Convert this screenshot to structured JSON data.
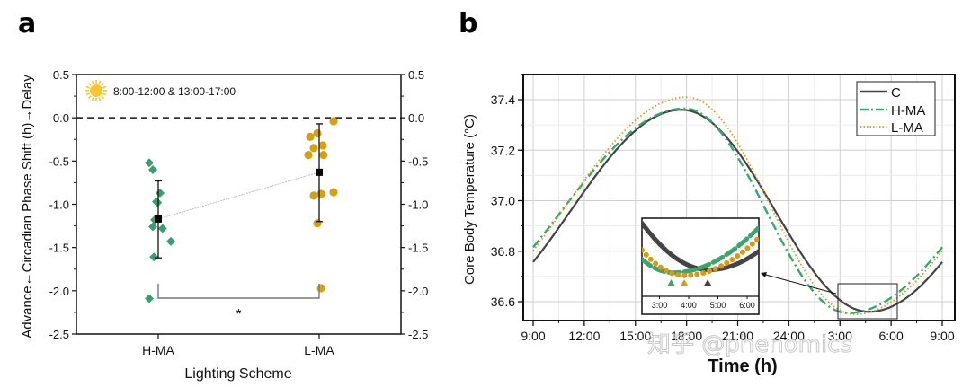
{
  "chart_data": [
    {
      "type": "scatter",
      "panel_label": "a",
      "title": "",
      "annotation": "8:00-12:00 & 13:00-17:00",
      "annotation_icon": "sun-icon",
      "xlabel": "Lighting Scheme",
      "ylabel": "Advance←Circadian Phase Shift (h)→Delay",
      "categories": [
        "H-MA",
        "L-MA"
      ],
      "ylim": [
        -2.5,
        0.5
      ],
      "yticks": [
        "0.5",
        "0.0",
        "-0.5",
        "-1.0",
        "-1.5",
        "-2.0",
        "-2.5"
      ],
      "yticks_values": [
        0.5,
        0.0,
        -0.5,
        -1.0,
        -1.5,
        -2.0,
        -2.5
      ],
      "reference_line": 0.0,
      "significance_label": "*",
      "series": [
        {
          "name": "H-MA",
          "marker": "diamond",
          "color": "#3a9e6e",
          "offsets": [
            -0.25,
            -0.15,
            0.05,
            -0.05,
            -0.02,
            -0.1,
            -0.15,
            0.12,
            0.35,
            -0.12,
            -0.25
          ],
          "values": [
            -0.52,
            -0.6,
            -0.87,
            -0.97,
            -0.98,
            -1.18,
            -1.26,
            -1.28,
            -1.43,
            -1.61,
            -2.09
          ],
          "mean": -1.17,
          "error_low": -1.62,
          "error_high": -0.73
        },
        {
          "name": "L-MA",
          "marker": "circle",
          "color": "#d4a017",
          "offsets": [
            -0.25,
            -0.05,
            0.4,
            -0.15,
            0.1,
            -0.3,
            0.12,
            -0.15,
            0.4,
            0.05,
            -0.05,
            0.05
          ],
          "values": [
            -0.22,
            -0.18,
            -0.04,
            -0.35,
            -0.32,
            -0.43,
            -0.43,
            -0.9,
            -0.86,
            -0.88,
            -1.22,
            -1.97
          ],
          "mean": -0.63,
          "error_low": -1.2,
          "error_high": -0.07
        }
      ]
    },
    {
      "type": "line",
      "panel_label": "b",
      "title": "",
      "xlabel": "Time (h)",
      "ylabel": "Core Body Temperature (°C)",
      "xticks": [
        "9:00",
        "12:00",
        "15:00",
        "18:00",
        "21:00",
        "24:00",
        "3:00",
        "6:00",
        "9:00"
      ],
      "xlim_hours": [
        9,
        33
      ],
      "ylim": [
        36.53,
        37.5
      ],
      "yticks": [
        "36.6",
        "36.8",
        "37.0",
        "37.2",
        "37.4"
      ],
      "yticks_values": [
        36.6,
        36.8,
        37.0,
        37.2,
        37.4
      ],
      "grid": true,
      "legend": "top-right",
      "series": [
        {
          "name": "C",
          "style": "solid",
          "color": "#444444",
          "mesor": 36.96,
          "amplitude": 0.4,
          "peak_hour": 17.7,
          "trough_hour": 28.7
        },
        {
          "name": "H-MA",
          "style": "dash-dot",
          "color": "#3aa66e",
          "mesor": 36.96,
          "amplitude": 0.405,
          "peak_hour": 17.9,
          "trough_hour": 27.45
        },
        {
          "name": "L-MA",
          "style": "dotted",
          "color": "#d49a1a",
          "mesor": 36.98,
          "amplitude": 0.43,
          "peak_hour": 18.0,
          "trough_hour": 27.85
        }
      ],
      "inset": {
        "xticks": [
          "3:00",
          "4:00",
          "5:00",
          "6:00"
        ],
        "trough_markers": [
          {
            "series": "H-MA",
            "hour": 27.4,
            "color": "#3aa66e"
          },
          {
            "series": "L-MA",
            "hour": 27.85,
            "color": "#d49a1a"
          },
          {
            "series": "C",
            "hour": 28.65,
            "color": "#444444"
          }
        ]
      }
    }
  ],
  "watermark": "知乎 @phenomics"
}
